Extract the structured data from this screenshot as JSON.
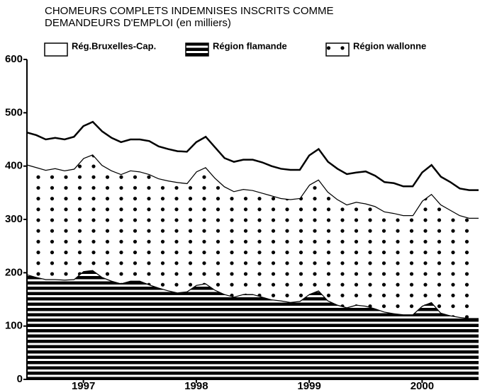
{
  "chart_data": {
    "type": "area",
    "stacked": true,
    "title": [
      "CHOMEURS COMPLETS INDEMNISES INSCRITS COMME",
      "DEMANDEURS D'EMPLOI (en milliers)"
    ],
    "categories": [
      null,
      null,
      null,
      null,
      null,
      null,
      "1997",
      null,
      null,
      null,
      null,
      null,
      null,
      null,
      null,
      null,
      null,
      null,
      "1998",
      null,
      null,
      null,
      null,
      null,
      null,
      null,
      null,
      null,
      null,
      null,
      "1999",
      null,
      null,
      null,
      null,
      null,
      null,
      null,
      null,
      null,
      null,
      null,
      "2000",
      null,
      null,
      null,
      null,
      null,
      null
    ],
    "series": [
      {
        "name": "Rég.Bruxelles-Cap.",
        "color": "#000000",
        "pattern": "none",
        "values": [
          60,
          60,
          57,
          57,
          58,
          60,
          60,
          61,
          63,
          61,
          60,
          58,
          60,
          62,
          60,
          59,
          58,
          59,
          55,
          57,
          57,
          53,
          55,
          55,
          57,
          57,
          55,
          55,
          55,
          53,
          55,
          57,
          56,
          57,
          57,
          55,
          60,
          57,
          55,
          56,
          54,
          54,
          53,
          54,
          52,
          52,
          50,
          52,
          52
        ]
      },
      {
        "name": "Région flamande",
        "color": "#000000",
        "pattern": "stripes",
        "values": [
          197,
          192,
          188,
          188,
          187,
          188,
          203,
          205,
          192,
          185,
          180,
          185,
          185,
          178,
          172,
          167,
          163,
          165,
          177,
          180,
          168,
          160,
          155,
          160,
          160,
          155,
          150,
          148,
          145,
          147,
          160,
          167,
          148,
          140,
          135,
          140,
          138,
          133,
          127,
          124,
          122,
          122,
          138,
          145,
          125,
          120,
          117,
          115,
          115
        ]
      },
      {
        "name": "Région wallonne",
        "color": "#000000",
        "pattern": "dots",
        "values": [
          206,
          206,
          205,
          208,
          205,
          207,
          212,
          217,
          210,
          207,
          205,
          207,
          205,
          207,
          205,
          206,
          207,
          203,
          213,
          218,
          210,
          202,
          198,
          197,
          195,
          195,
          195,
          192,
          193,
          193,
          205,
          208,
          204,
          198,
          193,
          193,
          192,
          192,
          188,
          188,
          186,
          186,
          197,
          203,
          203,
          198,
          191,
          188,
          188
        ]
      }
    ],
    "ylim": [
      0,
      600
    ],
    "yticks": [
      0,
      100,
      200,
      300,
      400,
      500,
      600
    ],
    "grid": false
  }
}
